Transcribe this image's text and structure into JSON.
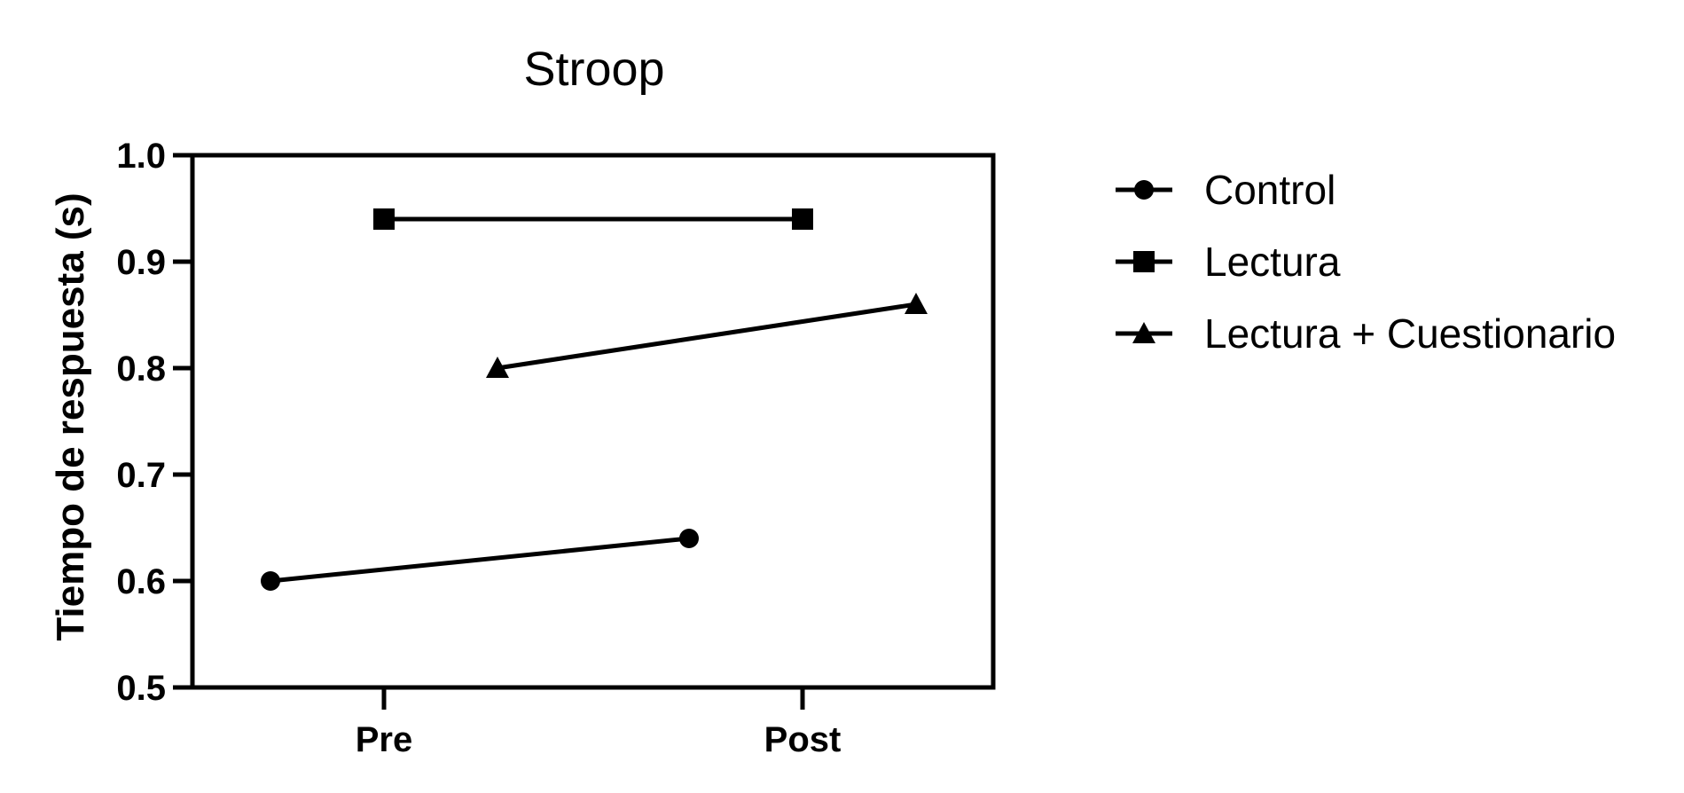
{
  "chart_data": {
    "type": "line",
    "title": "Stroop",
    "xlabel": "",
    "ylabel": "Tiempo de respuesta (s)",
    "categories": [
      "Pre",
      "Post"
    ],
    "ylim": [
      0.5,
      1.0
    ],
    "yticks": [
      "0.5",
      "0.6",
      "0.7",
      "0.8",
      "0.9",
      "1.0"
    ],
    "grid": false,
    "legend_position": "right",
    "series": [
      {
        "name": "Control",
        "marker": "circle",
        "values": [
          0.6,
          0.64
        ]
      },
      {
        "name": "Lectura",
        "marker": "square",
        "values": [
          0.94,
          0.94
        ]
      },
      {
        "name": "Lectura + Cuestionario",
        "marker": "triangle",
        "values": [
          0.8,
          0.86
        ]
      }
    ],
    "colors": {
      "line": "#000000",
      "background": "#ffffff"
    }
  }
}
